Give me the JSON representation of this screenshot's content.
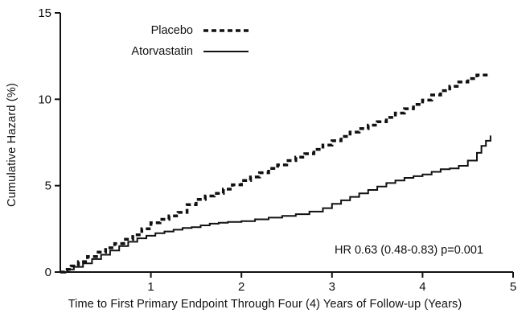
{
  "chart_data": {
    "type": "line",
    "title": "",
    "xlabel": "Time to First Primary Endpoint Through Four (4) Years of Follow-up (Years)",
    "ylabel": "Cumulative Hazard (%)",
    "xlim": [
      0,
      5
    ],
    "ylim": [
      0,
      15
    ],
    "x_ticks": [
      1,
      2,
      3,
      4,
      5
    ],
    "y_ticks": [
      0,
      5,
      10,
      15
    ],
    "grid": false,
    "legend_position": "top-left-inside",
    "line_color": "#111111",
    "annotation": "HR 0.63 (0.48-0.83) p=0.001",
    "series": [
      {
        "name": "Placebo",
        "style": "dashed",
        "points": [
          [
            0,
            0
          ],
          [
            0.05,
            0.15
          ],
          [
            0.12,
            0.35
          ],
          [
            0.2,
            0.6
          ],
          [
            0.3,
            0.9
          ],
          [
            0.4,
            1.15
          ],
          [
            0.5,
            1.4
          ],
          [
            0.6,
            1.65
          ],
          [
            0.7,
            1.9
          ],
          [
            0.8,
            2.15
          ],
          [
            0.9,
            2.5
          ],
          [
            1.0,
            2.85
          ],
          [
            1.1,
            3.05
          ],
          [
            1.2,
            3.25
          ],
          [
            1.3,
            3.45
          ],
          [
            1.4,
            3.9
          ],
          [
            1.5,
            4.2
          ],
          [
            1.6,
            4.4
          ],
          [
            1.7,
            4.55
          ],
          [
            1.8,
            4.8
          ],
          [
            1.9,
            5.05
          ],
          [
            2.0,
            5.3
          ],
          [
            2.1,
            5.5
          ],
          [
            2.2,
            5.75
          ],
          [
            2.3,
            6.0
          ],
          [
            2.4,
            6.2
          ],
          [
            2.5,
            6.45
          ],
          [
            2.6,
            6.65
          ],
          [
            2.7,
            6.85
          ],
          [
            2.8,
            7.1
          ],
          [
            2.9,
            7.35
          ],
          [
            3.0,
            7.6
          ],
          [
            3.1,
            7.85
          ],
          [
            3.2,
            8.1
          ],
          [
            3.3,
            8.3
          ],
          [
            3.4,
            8.5
          ],
          [
            3.5,
            8.7
          ],
          [
            3.6,
            8.95
          ],
          [
            3.7,
            9.2
          ],
          [
            3.8,
            9.45
          ],
          [
            3.9,
            9.7
          ],
          [
            4.0,
            9.95
          ],
          [
            4.1,
            10.25
          ],
          [
            4.2,
            10.5
          ],
          [
            4.3,
            10.75
          ],
          [
            4.4,
            11.0
          ],
          [
            4.5,
            11.2
          ],
          [
            4.6,
            11.4
          ],
          [
            4.72,
            11.5
          ]
        ]
      },
      {
        "name": "Atorvastatin",
        "style": "solid",
        "points": [
          [
            0,
            0
          ],
          [
            0.08,
            0.15
          ],
          [
            0.15,
            0.3
          ],
          [
            0.25,
            0.5
          ],
          [
            0.35,
            0.75
          ],
          [
            0.45,
            1.0
          ],
          [
            0.55,
            1.25
          ],
          [
            0.65,
            1.5
          ],
          [
            0.75,
            1.75
          ],
          [
            0.85,
            1.95
          ],
          [
            0.95,
            2.1
          ],
          [
            1.05,
            2.25
          ],
          [
            1.15,
            2.35
          ],
          [
            1.25,
            2.45
          ],
          [
            1.35,
            2.55
          ],
          [
            1.45,
            2.6
          ],
          [
            1.55,
            2.7
          ],
          [
            1.65,
            2.8
          ],
          [
            1.75,
            2.85
          ],
          [
            1.85,
            2.9
          ],
          [
            2.0,
            2.95
          ],
          [
            2.15,
            3.05
          ],
          [
            2.3,
            3.15
          ],
          [
            2.45,
            3.25
          ],
          [
            2.6,
            3.35
          ],
          [
            2.75,
            3.5
          ],
          [
            2.9,
            3.7
          ],
          [
            3.0,
            3.95
          ],
          [
            3.1,
            4.15
          ],
          [
            3.2,
            4.35
          ],
          [
            3.3,
            4.55
          ],
          [
            3.4,
            4.75
          ],
          [
            3.5,
            4.95
          ],
          [
            3.6,
            5.15
          ],
          [
            3.7,
            5.3
          ],
          [
            3.8,
            5.45
          ],
          [
            3.9,
            5.55
          ],
          [
            4.0,
            5.65
          ],
          [
            4.1,
            5.8
          ],
          [
            4.2,
            5.95
          ],
          [
            4.3,
            6.0
          ],
          [
            4.4,
            6.15
          ],
          [
            4.5,
            6.45
          ],
          [
            4.6,
            6.9
          ],
          [
            4.65,
            7.3
          ],
          [
            4.7,
            7.6
          ],
          [
            4.75,
            7.9
          ]
        ]
      }
    ]
  }
}
